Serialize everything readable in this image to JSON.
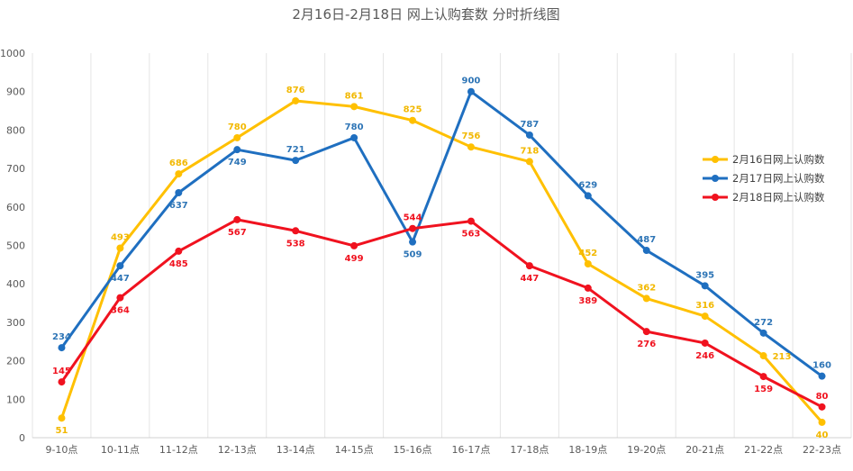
{
  "chart_data": {
    "type": "line",
    "title": "2月16日-2月18日 网上认购套数 分时折线图",
    "categories": [
      "9-10点",
      "10-11点",
      "11-12点",
      "12-13点",
      "13-14点",
      "14-15点",
      "15-16点",
      "16-17点",
      "17-18点",
      "18-19点",
      "19-20点",
      "20-21点",
      "21-22点",
      "22-23点"
    ],
    "ylim": [
      0,
      1000
    ],
    "yticks": [
      0,
      100,
      200,
      300,
      400,
      500,
      600,
      700,
      800,
      900,
      1000
    ],
    "grid": "vertical",
    "legend_position": "right",
    "series": [
      {
        "name": "2月16日网上认购数",
        "color": "#FFC000",
        "label_color": "#F2B800",
        "values": [
          51,
          493,
          686,
          780,
          876,
          861,
          825,
          756,
          718,
          452,
          362,
          316,
          213,
          40
        ]
      },
      {
        "name": "2月17日网上认购数",
        "color": "#1F6FC0",
        "label_color": "#2E75B6",
        "values": [
          234,
          447,
          637,
          749,
          721,
          780,
          509,
          900,
          787,
          629,
          487,
          395,
          272,
          160
        ]
      },
      {
        "name": "2月18日网上认购数",
        "color": "#F0121F",
        "label_color": "#F0121F",
        "values": [
          145,
          364,
          485,
          567,
          538,
          499,
          544,
          563,
          447,
          389,
          276,
          246,
          159,
          80
        ]
      }
    ]
  }
}
